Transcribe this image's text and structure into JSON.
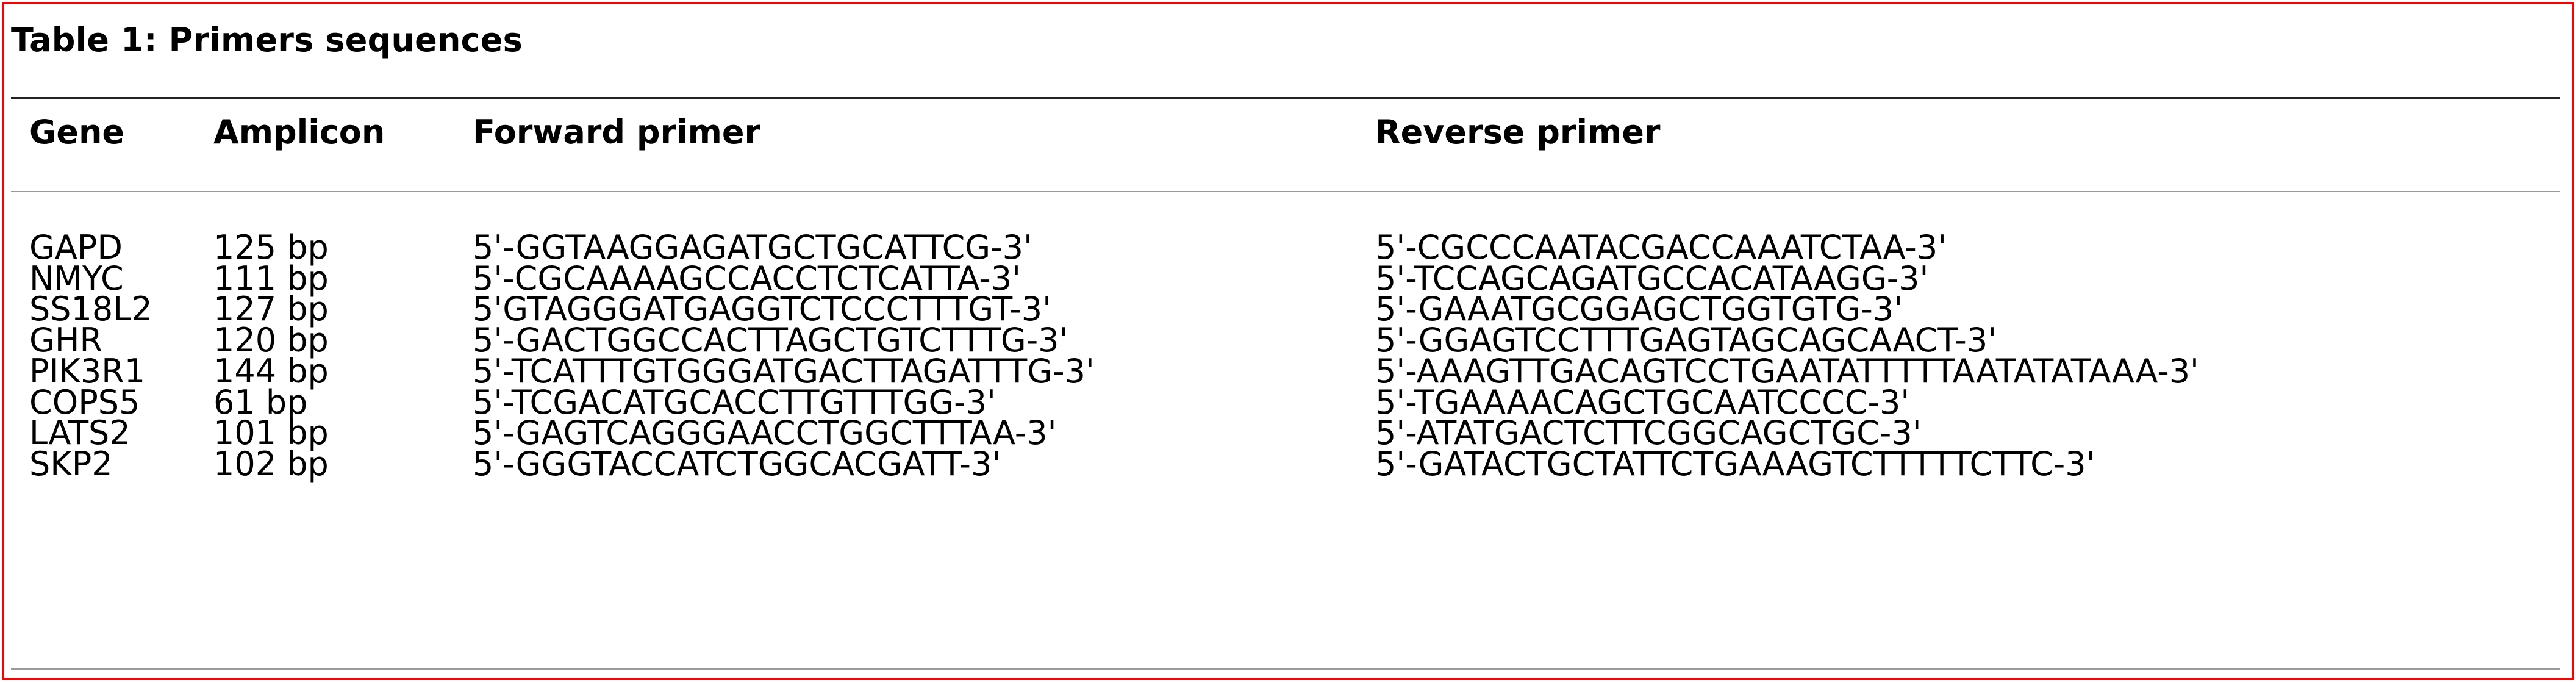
{
  "table": {
    "title": "Table 1: Primers sequences",
    "headers": {
      "gene": "Gene",
      "amplicon": "Amplicon",
      "forward": "Forward primer",
      "reverse": "Reverse primer"
    },
    "rows": [
      {
        "gene": "GAPD",
        "amplicon": "125 bp",
        "forward": "5'-GGTAAGGAGATGCTGCATTCG-3'",
        "reverse": "5'-CGCCCAATACGACCAAATCTAA-3'"
      },
      {
        "gene": "NMYC",
        "amplicon": "111 bp",
        "forward": "5'-CGCAAAAGCCACCTCTCATTA-3'",
        "reverse": "5'-TCCAGCAGATGCCACATAAGG-3'"
      },
      {
        "gene": "SS18L2",
        "amplicon": "127 bp",
        "forward": "5'GTAGGGATGAGGTCTCCCTTTGT-3'",
        "reverse": "5'-GAAATGCGGAGCTGGTGTG-3'"
      },
      {
        "gene": "GHR",
        "amplicon": "120 bp",
        "forward": "5'-GACTGGCCACTTAGCTGTCTTTG-3'",
        "reverse": "5'-GGAGTCCTTTGAGTAGCAGCAACT-3'"
      },
      {
        "gene": "PIK3R1",
        "amplicon": "144 bp",
        "forward": "5'-TCATTTGTGGGATGACTTAGATTTG-3'",
        "reverse": "5'-AAAGTTGACAGTCCTGAATATTTTTAATATATAAA-3'"
      },
      {
        "gene": "COPS5",
        "amplicon": "61 bp",
        "forward": "5'-TCGACATGCACCTTGTTTGG-3'",
        "reverse": "5'-TGAAAACAGCTGCAATCCCC-3'"
      },
      {
        "gene": "LATS2",
        "amplicon": "101 bp",
        "forward": "5'-GAGTCAGGGAACCTGGCTTTAA-3'",
        "reverse": "5'-ATATGACTCTTCGGCAGCTGC-3'"
      },
      {
        "gene": "SKP2",
        "amplicon": "102 bp",
        "forward": "5'-GGGTACCATCTGGCACGATT-3'",
        "reverse": "5'-GATACTGCTATTCTGAAAGTCTTTTTCTTC-3'"
      }
    ]
  }
}
